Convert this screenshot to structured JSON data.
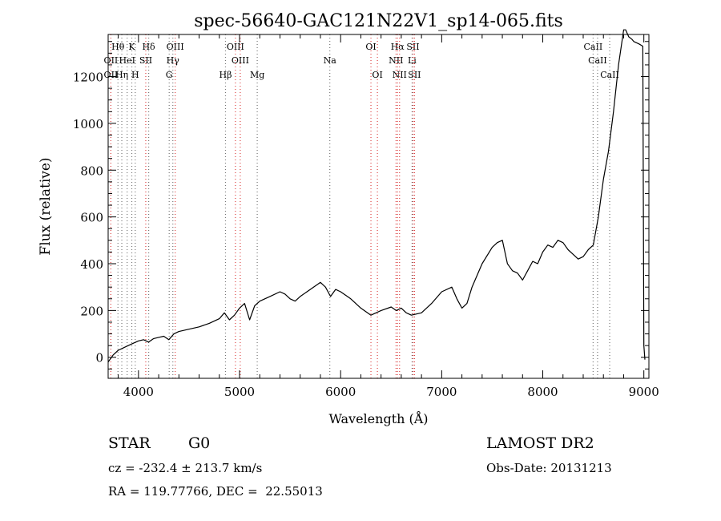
{
  "chart_data": {
    "type": "line",
    "title": "spec-56640-GAC121N22V1_sp14-065.fits",
    "xlabel": "Wavelength (Å)",
    "ylabel": "Flux (relative)",
    "xlim": [
      3700,
      9050
    ],
    "ylim": [
      -90,
      1380
    ],
    "xticks": [
      4000,
      5000,
      6000,
      7000,
      8000,
      9000
    ],
    "xtick_labels": [
      "4000",
      "5000",
      "6000",
      "7000",
      "8000",
      "9000"
    ],
    "yticks": [
      0,
      200,
      400,
      600,
      800,
      1000,
      1200
    ],
    "ytick_labels": [
      "0",
      "200",
      "400",
      "600",
      "800",
      "1000",
      "1200"
    ],
    "grid": false,
    "series": [
      {
        "x": [
          3700,
          3750,
          3800,
          3850,
          3900,
          3950,
          4000,
          4050,
          4100,
          4150,
          4200,
          4250,
          4300,
          4350,
          4400,
          4500,
          4600,
          4700,
          4800,
          4850,
          4900,
          4950,
          5000,
          5050,
          5100,
          5150,
          5200,
          5300,
          5400,
          5450,
          5500,
          5550,
          5600,
          5700,
          5800,
          5850,
          5900,
          5950,
          6000,
          6100,
          6200,
          6300,
          6400,
          6500,
          6550,
          6600,
          6650,
          6700,
          6800,
          6900,
          7000,
          7100,
          7150,
          7200,
          7250,
          7300,
          7400,
          7500,
          7550,
          7600,
          7650,
          7700,
          7750,
          7800,
          7850,
          7900,
          7950,
          8000,
          8050,
          8100,
          8150,
          8200,
          8250,
          8300,
          8350,
          8400,
          8450,
          8500,
          8550,
          8600,
          8650,
          8700,
          8750,
          8800,
          8820,
          8850,
          8880,
          8900,
          8950,
          8990,
          9000,
          9010
        ],
        "y": [
          -20,
          10,
          30,
          40,
          50,
          60,
          70,
          75,
          65,
          80,
          85,
          90,
          75,
          100,
          110,
          120,
          130,
          145,
          165,
          190,
          160,
          180,
          210,
          230,
          160,
          220,
          240,
          260,
          280,
          270,
          250,
          240,
          260,
          290,
          320,
          300,
          260,
          290,
          280,
          250,
          210,
          180,
          200,
          215,
          200,
          210,
          190,
          180,
          190,
          230,
          280,
          300,
          250,
          210,
          230,
          300,
          400,
          470,
          490,
          500,
          400,
          370,
          360,
          330,
          370,
          410,
          400,
          450,
          480,
          470,
          500,
          490,
          460,
          440,
          420,
          430,
          460,
          480,
          600,
          760,
          880,
          1050,
          1250,
          1400,
          1400,
          1370,
          1360,
          1350,
          1340,
          1330,
          50,
          -10
        ]
      }
    ],
    "line_markers": [
      {
        "label": "Hθ",
        "wavelength": 3797,
        "row": 1
      },
      {
        "label": "K",
        "wavelength": 3934,
        "row": 1
      },
      {
        "label": "Hδ",
        "wavelength": 4101,
        "row": 1
      },
      {
        "label": "OIII",
        "wavelength": 4363,
        "row": 1
      },
      {
        "label": "OIII",
        "wavelength": 4959,
        "row": 1
      },
      {
        "label": "OI",
        "wavelength": 6300,
        "row": 1
      },
      {
        "label": "Hα",
        "wavelength": 6563,
        "row": 1
      },
      {
        "label": "SII",
        "wavelength": 6716,
        "row": 1
      },
      {
        "label": "CaII",
        "wavelength": 8498,
        "row": 1
      },
      {
        "label": "OII",
        "wavelength": 3727,
        "row": 2
      },
      {
        "label": "HeI",
        "wavelength": 3888,
        "row": 2
      },
      {
        "label": "SII",
        "wavelength": 4072,
        "row": 2
      },
      {
        "label": "Hγ",
        "wavelength": 4340,
        "row": 2
      },
      {
        "label": "OIII",
        "wavelength": 5007,
        "row": 2
      },
      {
        "label": "Na",
        "wavelength": 5893,
        "row": 2
      },
      {
        "label": "NII",
        "wavelength": 6548,
        "row": 2
      },
      {
        "label": "Li",
        "wavelength": 6707,
        "row": 2
      },
      {
        "label": "CaII",
        "wavelength": 8542,
        "row": 2
      },
      {
        "label": "OII",
        "wavelength": 3727,
        "row": 3
      },
      {
        "label": "Hη",
        "wavelength": 3835,
        "row": 3
      },
      {
        "label": "H",
        "wavelength": 3968,
        "row": 3
      },
      {
        "label": "G",
        "wavelength": 4304,
        "row": 3
      },
      {
        "label": "Hβ",
        "wavelength": 4861,
        "row": 3
      },
      {
        "label": "Mg",
        "wavelength": 5175,
        "row": 3
      },
      {
        "label": "OI",
        "wavelength": 6364,
        "row": 3
      },
      {
        "label": "NII",
        "wavelength": 6583,
        "row": 3
      },
      {
        "label": "SII",
        "wavelength": 6731,
        "row": 3
      },
      {
        "label": "CaII",
        "wavelength": 8662,
        "row": 3
      }
    ]
  },
  "info": {
    "object_type": "STAR",
    "subclass": "G0",
    "survey": "LAMOST DR2",
    "cz": "cz = -232.4 ± 213.7 km/s",
    "obs_date": "Obs-Date: 20131213",
    "coords": "RA = 119.77766, DEC =  22.55013"
  },
  "colors": {
    "line": "#000000",
    "emission_marker": "#dd4444",
    "absorption_marker": "#777777"
  }
}
